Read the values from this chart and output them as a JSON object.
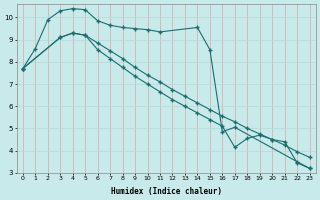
{
  "xlabel": "Humidex (Indice chaleur)",
  "bg_color": "#c8eaea",
  "grid_color_v": "#d4a8a8",
  "grid_color_h": "#b8d8d8",
  "line_color": "#1a6e6e",
  "xlim": [
    -0.5,
    23.5
  ],
  "ylim": [
    3,
    10.6
  ],
  "xticks": [
    0,
    1,
    2,
    3,
    4,
    5,
    6,
    7,
    8,
    9,
    10,
    11,
    12,
    13,
    14,
    15,
    16,
    17,
    18,
    19,
    20,
    21,
    22,
    23
  ],
  "yticks": [
    3,
    4,
    5,
    6,
    7,
    8,
    9,
    10
  ],
  "line1_x": [
    0,
    1,
    2,
    3,
    4,
    5,
    6,
    7,
    8,
    9,
    10,
    11,
    14,
    15,
    16,
    17,
    22,
    23
  ],
  "line1_y": [
    7.7,
    8.6,
    9.9,
    10.3,
    10.4,
    10.35,
    9.85,
    9.65,
    9.55,
    9.5,
    9.45,
    9.35,
    9.55,
    8.55,
    4.85,
    5.05,
    3.5,
    3.2
  ],
  "line2_x": [
    0,
    3,
    4,
    5,
    6,
    7,
    8,
    9,
    10,
    11,
    12,
    13,
    14,
    15,
    16,
    17,
    18,
    19,
    20,
    21,
    22,
    23
  ],
  "line2_y": [
    7.7,
    9.1,
    9.3,
    9.2,
    8.85,
    8.5,
    8.15,
    7.75,
    7.4,
    7.1,
    6.75,
    6.45,
    6.15,
    5.85,
    5.55,
    5.3,
    5.0,
    4.75,
    4.5,
    4.25,
    3.95,
    3.7
  ],
  "line3_x": [
    0,
    3,
    4,
    5,
    6,
    7,
    8,
    9,
    10,
    11,
    12,
    13,
    14,
    15,
    16,
    17,
    18,
    19,
    20,
    21,
    22,
    23
  ],
  "line3_y": [
    7.7,
    9.1,
    9.3,
    9.2,
    8.55,
    8.15,
    7.75,
    7.35,
    7.0,
    6.65,
    6.3,
    6.0,
    5.7,
    5.4,
    5.1,
    4.15,
    4.55,
    4.7,
    4.5,
    4.4,
    3.45,
    3.2
  ]
}
